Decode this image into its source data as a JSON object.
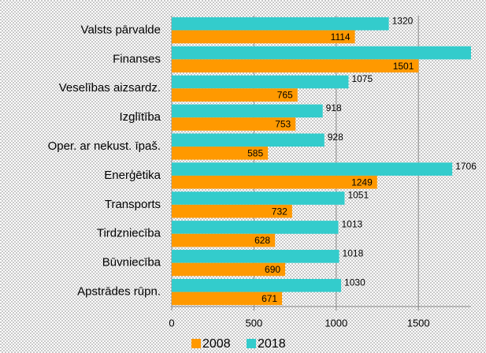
{
  "chart_data": {
    "type": "hbar",
    "categories": [
      "Valsts pārvalde",
      "Finanses",
      "Veselības  aizsardz.",
      "Izglītība",
      "Oper. ar nekust. īpaš.",
      "Enerģētika",
      "Transports",
      "Tirdzniecība",
      "Būvniecība",
      "Apstrādes rūpn."
    ],
    "series": [
      {
        "name": "2008",
        "color": "#ff9900",
        "values": [
          1114,
          1501,
          765,
          753,
          585,
          1249,
          732,
          628,
          690,
          671
        ]
      },
      {
        "name": "2018",
        "color": "#33cccc",
        "values": [
          1320,
          1820,
          1075,
          918,
          928,
          1706,
          1051,
          1013,
          1018,
          1030
        ],
        "value_labels": [
          "1320",
          null,
          "1075",
          "918",
          "928",
          "1706",
          "1051",
          "1013",
          "1018",
          "1030"
        ]
      }
    ],
    "xlim": [
      0,
      1820
    ],
    "xticks": [
      0,
      500,
      1000,
      1500
    ],
    "grid": true,
    "legend": "bottom"
  }
}
